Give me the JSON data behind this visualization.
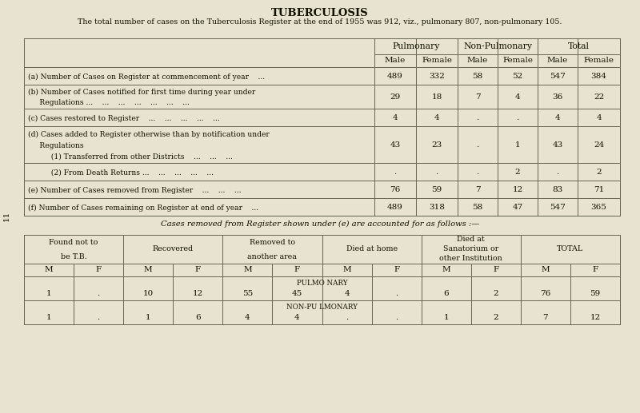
{
  "title": "TUBERCULOSIS",
  "subtitle": "The total number of cases on the Tuberculosis Register at the end of 1955 was 912, viz., pulmonary 807, non-pulmonary 105.",
  "bg_color": "#e8e2d0",
  "table1": {
    "col_headers_top": [
      "Pulmonary",
      "Non-Pulmonary",
      "Total"
    ],
    "col_headers_sub": [
      "Male",
      "Female",
      "Male",
      "Female",
      "Male",
      "Female"
    ],
    "rows": [
      {
        "label_lines": [
          "(a) Number of Cases on Register at commencement of year    ..."
        ],
        "values": [
          "489",
          "332",
          "58",
          "52",
          "547",
          "384"
        ]
      },
      {
        "label_lines": [
          "(b) Number of Cases notified for first time during year under",
          "     Regulations ...    ...    ...    ...    ...    ...    ..."
        ],
        "values": [
          "29",
          "18",
          "7",
          "4",
          "36",
          "22"
        ]
      },
      {
        "label_lines": [
          "(c) Cases restored to Register    ...    ...    ...    ...    ..."
        ],
        "values": [
          "4",
          "4",
          ".",
          ".",
          "4",
          "4"
        ]
      },
      {
        "label_lines": [
          "(d) Cases added to Register otherwise than by notification under",
          "     Regulations",
          "          (1) Transferred from other Districts    ...    ...    ..."
        ],
        "values": [
          "43",
          "23",
          ".",
          "1",
          "43",
          "24"
        ]
      },
      {
        "label_lines": [
          "          (2) From Death Returns ...    ...    ...    ...    ..."
        ],
        "values": [
          ".",
          ".",
          ".",
          "2",
          ".",
          "2"
        ]
      },
      {
        "label_lines": [
          "(e) Number of Cases removed from Register    ...    ...    ..."
        ],
        "values": [
          "76",
          "59",
          "7",
          "12",
          "83",
          "71"
        ]
      },
      {
        "label_lines": [
          "(f) Number of Cases remaining on Register at end of year    ..."
        ],
        "values": [
          "489",
          "318",
          "58",
          "47",
          "547",
          "365"
        ]
      }
    ]
  },
  "intertext": "Cases removed from Register shown under (e) are accounted for as follows :—",
  "table2": {
    "col_headers_top": [
      "Found not to\nbe T.B.",
      "Recovered",
      "Removed to\nanother area",
      "Died at home",
      "Died at\nSanatorium or\nother Institution",
      "TOTAL"
    ],
    "col_headers_sub": [
      "M",
      "F",
      "M",
      "F",
      "M",
      "F",
      "M",
      "F",
      "M",
      "F",
      "M",
      "F"
    ],
    "row1_label_top": "PULMO NARY",
    "row2_label_top": "NON-PU LMONARY",
    "row1_values": [
      "1",
      ".",
      "10",
      "12",
      "55",
      "45",
      "4",
      ".",
      "6",
      "2",
      "76",
      "59"
    ],
    "row2_values": [
      "1",
      ".",
      "1",
      "6",
      "4",
      "4",
      ".",
      ".",
      "1",
      "2",
      "7",
      "12"
    ]
  },
  "side_label": "11"
}
